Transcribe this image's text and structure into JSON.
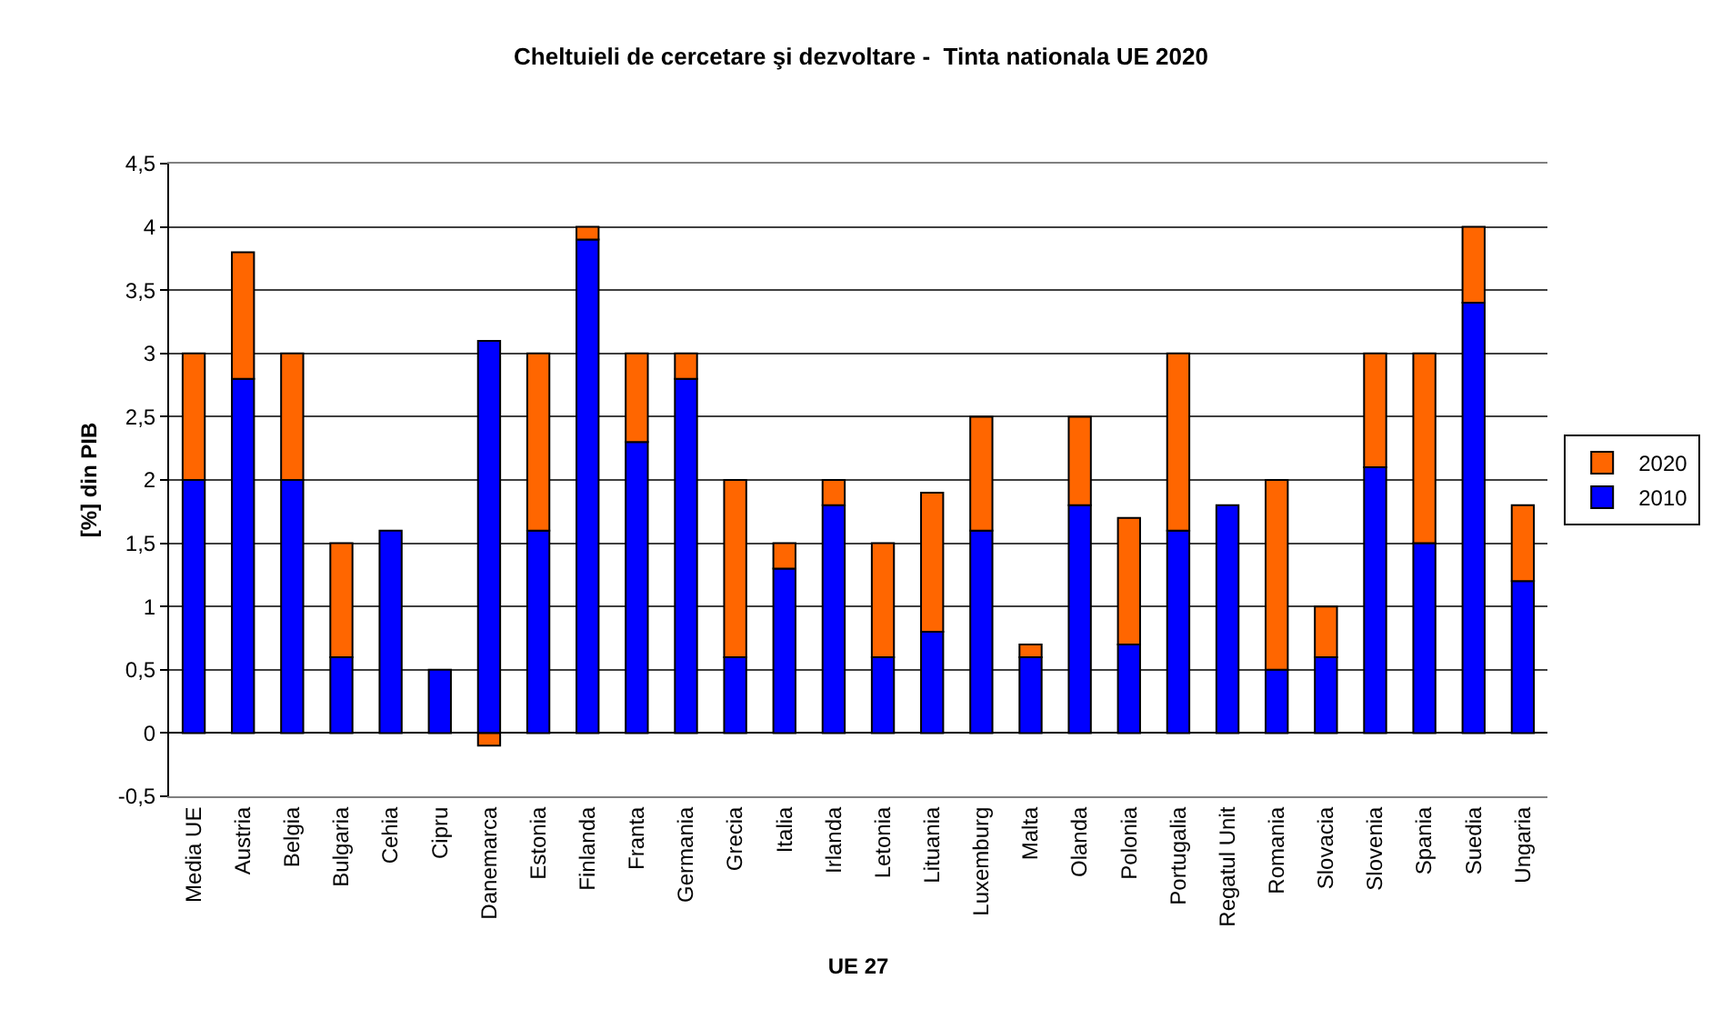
{
  "chart_data": {
    "type": "bar",
    "title": "Cheltuieli de cercetare şi dezvoltare -  Tinta nationala UE 2020",
    "xlabel": "UE 27",
    "ylabel": "[%] din PIB",
    "categories": [
      "Media UE",
      "Austria",
      "Belgia",
      "Bulgaria",
      "Cehia",
      "Cipru",
      "Danemarca",
      "Estonia",
      "Finlanda",
      "Franta",
      "Germania",
      "Grecia",
      "Italia",
      "Irlanda",
      "Letonia",
      "Lituania",
      "Luxemburg",
      "Malta",
      "Olanda",
      "Polonia",
      "Portugalia",
      "Regatul Unit",
      "Romania",
      "Slovacia",
      "Slovenia",
      "Spania",
      "Suedia",
      "Ungaria"
    ],
    "series": [
      {
        "name": "2010",
        "color": "#0000ff",
        "values": [
          2.0,
          2.8,
          2.0,
          0.6,
          1.6,
          0.5,
          3.1,
          1.6,
          3.9,
          2.3,
          2.8,
          0.6,
          1.3,
          1.8,
          0.6,
          0.8,
          1.6,
          0.6,
          1.8,
          0.7,
          1.6,
          1.8,
          0.5,
          0.6,
          2.1,
          1.5,
          3.4,
          1.2
        ]
      },
      {
        "name": "2020",
        "color": "#ff6600",
        "values": [
          1.0,
          1.0,
          1.0,
          0.9,
          null,
          null,
          -0.1,
          1.4,
          0.1,
          0.7,
          0.2,
          1.4,
          0.2,
          0.2,
          0.9,
          1.1,
          0.9,
          0.1,
          0.7,
          1.0,
          1.4,
          null,
          1.5,
          0.4,
          0.9,
          1.5,
          0.6,
          0.6
        ]
      }
    ],
    "stacked": true,
    "ylim": [
      -0.5,
      4.5
    ],
    "yticks": [
      {
        "value": -0.5,
        "label": "-0,5"
      },
      0,
      {
        "value": 0.5,
        "label": "0,5"
      },
      1,
      {
        "value": 1.5,
        "label": "1,5"
      },
      2,
      {
        "value": 2.5,
        "label": "2,5"
      },
      3,
      {
        "value": 3.5,
        "label": "3,5"
      },
      4,
      {
        "value": 4.5,
        "label": "4,5"
      }
    ],
    "grid": "y",
    "legend": "right"
  }
}
